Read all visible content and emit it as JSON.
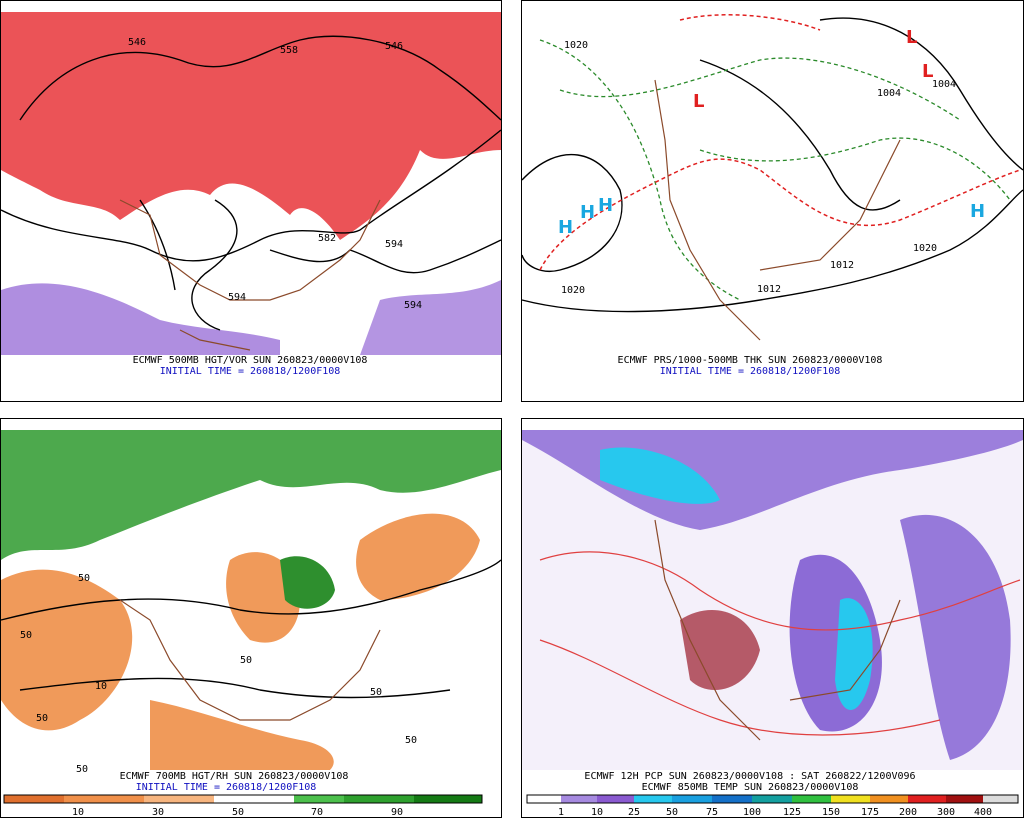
{
  "panels": [
    {
      "caption": "ECMWF 500MB HGT/VOR SUN 260823/0000V108",
      "initial_time": "INITIAL TIME = 260818/1200F108",
      "labels": [
        "546",
        "558",
        "546",
        "594",
        "594",
        "594",
        "582"
      ]
    },
    {
      "caption": "ECMWF PRS/1000-500MB THK SUN 260823/0000V108",
      "initial_time": "INITIAL TIME = 260818/1200F108",
      "labels": [
        "1020",
        "1004",
        "1004",
        "1020",
        "1012",
        "1012",
        "1020",
        "H",
        "H",
        "H",
        "H",
        "L",
        "L",
        "L"
      ]
    },
    {
      "caption": "ECMWF 700MB HGT/RH SUN 260823/0000V108",
      "initial_time": "INITIAL TIME = 260818/1200F108",
      "labels": [
        "50",
        "50",
        "10",
        "50",
        "50",
        "50",
        "50",
        "50"
      ],
      "colorbar": [
        10,
        30,
        50,
        70,
        90
      ]
    },
    {
      "caption": "ECMWF 12H PCP SUN 260823/0000V108 : SAT 260822/1200V096",
      "initial_time": "ECMWF 850MB TEMP SUN 260823/0000V108",
      "colorbar": [
        1,
        10,
        25,
        50,
        75,
        100,
        125,
        150,
        175,
        200,
        300,
        400
      ]
    }
  ]
}
